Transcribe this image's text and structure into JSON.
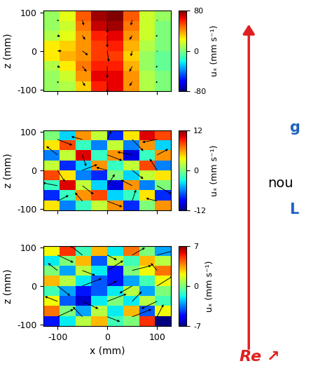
{
  "chart_data": [
    {
      "type": "heatmap",
      "xlabel": null,
      "ylabel": "z (mm)",
      "colorbar_label": "uₓ (mm s⁻¹)",
      "x": [
        -112,
        -80,
        -48,
        -16,
        16,
        48,
        80,
        112
      ],
      "z": [
        -91,
        -65,
        -39,
        -13,
        13,
        39,
        65,
        91
      ],
      "xlim": [
        -128,
        128
      ],
      "ylim": [
        -104,
        104
      ],
      "xticks": [
        -100,
        0,
        100
      ],
      "yticks": [
        -100,
        0,
        100
      ],
      "tick_labels": "y",
      "cells": [
        [
          5,
          10,
          30,
          60,
          65,
          40,
          10,
          0
        ],
        [
          5,
          15,
          40,
          65,
          65,
          40,
          10,
          0
        ],
        [
          10,
          25,
          45,
          60,
          60,
          35,
          5,
          -5
        ],
        [
          25,
          35,
          40,
          55,
          55,
          30,
          5,
          -5
        ],
        [
          25,
          30,
          40,
          55,
          60,
          35,
          10,
          0
        ],
        [
          10,
          20,
          40,
          60,
          65,
          40,
          15,
          0
        ],
        [
          5,
          15,
          45,
          70,
          75,
          45,
          15,
          0
        ],
        [
          5,
          20,
          50,
          75,
          80,
          50,
          15,
          5
        ]
      ],
      "color_range": [
        -80,
        80
      ],
      "color_ticks": [
        -80,
        0,
        80
      ],
      "arrows": {
        "x": [
          -100,
          -50,
          0,
          50,
          100
        ],
        "z": [
          -80,
          -40,
          0,
          40,
          80
        ],
        "u": [
          [
            5,
            10,
            0,
            -10,
            -5
          ],
          [
            10,
            15,
            0,
            -10,
            -5
          ],
          [
            15,
            20,
            5,
            -5,
            0
          ],
          [
            10,
            10,
            0,
            -10,
            -5
          ],
          [
            5,
            5,
            0,
            -5,
            0
          ]
        ],
        "w": [
          [
            -5,
            -20,
            -50,
            -20,
            -5
          ],
          [
            -5,
            -25,
            -55,
            -25,
            -5
          ],
          [
            0,
            -20,
            -50,
            -25,
            -5
          ],
          [
            -5,
            -20,
            -55,
            -20,
            -5
          ],
          [
            -5,
            -25,
            -60,
            -25,
            -5
          ]
        ]
      }
    },
    {
      "type": "heatmap",
      "xlabel": null,
      "ylabel": "z (mm)",
      "colorbar_label": "uₓ (mm s⁻¹)",
      "x": [
        -112,
        -80,
        -48,
        -16,
        16,
        48,
        80,
        112
      ],
      "z": [
        -91,
        -65,
        -39,
        -13,
        13,
        39,
        65,
        91
      ],
      "xlim": [
        -128,
        128
      ],
      "ylim": [
        -104,
        104
      ],
      "xticks": [
        -100,
        0,
        100
      ],
      "yticks": [
        -100,
        0,
        100
      ],
      "tick_labels": "y",
      "cells": [
        [
          4,
          -6,
          -2,
          2,
          6,
          -8,
          0,
          6
        ],
        [
          -8,
          -2,
          6,
          8,
          -4,
          -2,
          4,
          -8
        ],
        [
          -2,
          10,
          2,
          -4,
          -10,
          6,
          -6,
          0
        ],
        [
          8,
          4,
          -6,
          -8,
          0,
          -4,
          2,
          4
        ],
        [
          2,
          -8,
          -4,
          6,
          -2,
          2,
          8,
          -6
        ],
        [
          -6,
          2,
          10,
          -2,
          6,
          -10,
          -2,
          6
        ],
        [
          4,
          8,
          -2,
          -6,
          2,
          -6,
          6,
          -4
        ],
        [
          0,
          -4,
          6,
          2,
          -8,
          4,
          10,
          8
        ]
      ],
      "color_range": [
        -12,
        12
      ],
      "color_ticks": [
        -12,
        0,
        12
      ],
      "arrows": {
        "x": [
          -100,
          -50,
          0,
          50,
          100
        ],
        "z": [
          -80,
          -40,
          0,
          40,
          80
        ],
        "u": [
          [
            6,
            -4,
            8,
            2,
            -6
          ],
          [
            -8,
            6,
            4,
            -6,
            8
          ],
          [
            4,
            8,
            -6,
            6,
            -4
          ],
          [
            -6,
            2,
            8,
            -8,
            6
          ],
          [
            8,
            -6,
            2,
            6,
            -8
          ]
        ],
        "w": [
          [
            4,
            6,
            -4,
            8,
            2
          ],
          [
            2,
            -6,
            8,
            4,
            -6
          ],
          [
            -8,
            4,
            2,
            -6,
            8
          ],
          [
            6,
            -8,
            -4,
            2,
            4
          ],
          [
            -4,
            2,
            6,
            -8,
            -2
          ]
        ]
      }
    },
    {
      "type": "heatmap",
      "xlabel": "x (mm)",
      "ylabel": "z (mm)",
      "colorbar_label": "uₓ (mm s⁻¹)",
      "x": [
        -112,
        -80,
        -48,
        -16,
        16,
        48,
        80,
        112
      ],
      "z": [
        -91,
        -65,
        -39,
        -13,
        13,
        39,
        65,
        91
      ],
      "xlim": [
        -128,
        128
      ],
      "ylim": [
        -104,
        104
      ],
      "xticks": [
        -100,
        0,
        100
      ],
      "yticks": [
        -100,
        0,
        100
      ],
      "tick_labels": true,
      "cells": [
        [
          -5,
          -2,
          1,
          3,
          -1,
          0,
          5,
          -7
        ],
        [
          4,
          0,
          -3,
          1,
          -2,
          3,
          -4,
          2
        ],
        [
          2,
          -4,
          -6,
          -2,
          0,
          -2,
          1,
          -1
        ],
        [
          -1,
          -3,
          -5,
          -4,
          -2,
          1,
          -3,
          0
        ],
        [
          3,
          1,
          -2,
          -4,
          -5,
          -3,
          -1,
          2
        ],
        [
          0,
          -3,
          1,
          -2,
          -5,
          0,
          2,
          4
        ],
        [
          -2,
          0,
          3,
          -4,
          1,
          -1,
          3,
          1
        ],
        [
          2,
          5,
          -1,
          3,
          -2,
          4,
          0,
          -3
        ]
      ],
      "color_range": [
        -7,
        7
      ],
      "color_ticks": [
        -7,
        0,
        7
      ],
      "arrows": {
        "x": [
          -100,
          -50,
          0,
          50,
          100
        ],
        "z": [
          -80,
          -40,
          0,
          40,
          80
        ],
        "u": [
          [
            5,
            -3,
            4,
            6,
            2
          ],
          [
            -4,
            5,
            6,
            3,
            -5
          ],
          [
            4,
            6,
            3,
            -4,
            5
          ],
          [
            -3,
            4,
            5,
            6,
            -2
          ],
          [
            5,
            -4,
            3,
            4,
            6
          ]
        ],
        "w": [
          [
            3,
            4,
            -2,
            3,
            5
          ],
          [
            2,
            -3,
            3,
            4,
            -3
          ],
          [
            -4,
            3,
            2,
            -3,
            4
          ],
          [
            3,
            -2,
            4,
            2,
            3
          ],
          [
            -3,
            4,
            -2,
            3,
            2
          ]
        ]
      }
    }
  ],
  "annotations": [
    {
      "text": "Re ↗",
      "color": "#e02020"
    },
    {
      "text": "g",
      "color": "#2060c0"
    },
    {
      "text": "nou",
      "color": "#000000"
    },
    {
      "text": "L",
      "color": "#2060c0"
    }
  ]
}
